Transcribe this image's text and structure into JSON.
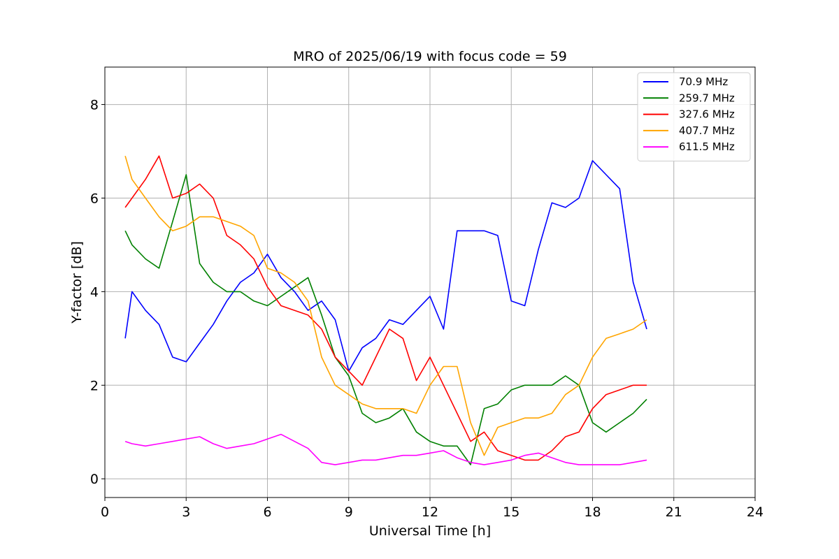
{
  "chart_data": {
    "type": "line",
    "title": "MRO of 2025/06/19 with focus code = 59",
    "xlabel": "Universal Time [h]",
    "ylabel": "Y-factor [dB]",
    "xlim": [
      0,
      24
    ],
    "ylim": [
      -0.4,
      8.8
    ],
    "xticks": [
      0,
      3,
      6,
      9,
      12,
      15,
      18,
      21,
      24
    ],
    "xtick_labels": [
      "0",
      "3",
      "6",
      "9",
      "12",
      "15",
      "18",
      "21",
      "24"
    ],
    "yticks": [
      0,
      2,
      4,
      6,
      8
    ],
    "ytick_labels": [
      "0",
      "2",
      "4",
      "6",
      "8"
    ],
    "grid": true,
    "legend_position": "top-right",
    "series": [
      {
        "name": " 70.9 MHz",
        "color": "#0000ff",
        "x": [
          0.75,
          1.0,
          1.5,
          2.0,
          2.5,
          3.0,
          3.5,
          4.0,
          4.5,
          5.0,
          5.5,
          6.0,
          6.5,
          7.0,
          7.5,
          8.0,
          8.5,
          9.0,
          9.5,
          10.0,
          10.5,
          11.0,
          11.5,
          12.0,
          12.5,
          13.0,
          13.5,
          14.0,
          14.5,
          15.0,
          15.5,
          16.0,
          16.5,
          17.0,
          17.5,
          18.0,
          18.5,
          19.0,
          19.5,
          20.0
        ],
        "y": [
          3.0,
          4.0,
          3.6,
          3.3,
          2.6,
          2.5,
          2.9,
          3.3,
          3.8,
          4.2,
          4.4,
          4.8,
          4.3,
          4.0,
          3.6,
          3.8,
          3.4,
          2.3,
          2.8,
          3.0,
          3.4,
          3.3,
          3.6,
          3.9,
          3.2,
          5.3,
          5.3,
          5.3,
          5.2,
          3.8,
          3.7,
          4.9,
          5.9,
          5.8,
          6.0,
          6.8,
          6.5,
          6.2,
          4.2,
          3.2
        ]
      },
      {
        "name": "259.7 MHz",
        "color": "#008000",
        "x": [
          0.75,
          1.0,
          1.5,
          2.0,
          2.5,
          3.0,
          3.5,
          4.0,
          4.5,
          5.0,
          5.5,
          6.0,
          6.5,
          7.0,
          7.5,
          8.0,
          8.5,
          9.0,
          9.5,
          10.0,
          10.5,
          11.0,
          11.5,
          12.0,
          12.5,
          13.0,
          13.5,
          14.0,
          14.5,
          15.0,
          15.5,
          16.0,
          16.5,
          17.0,
          17.5,
          18.0,
          18.5,
          19.0,
          19.5,
          20.0
        ],
        "y": [
          5.3,
          5.0,
          4.7,
          4.5,
          5.5,
          6.5,
          4.6,
          4.2,
          4.0,
          4.0,
          3.8,
          3.7,
          3.9,
          4.1,
          4.3,
          3.5,
          2.6,
          2.2,
          1.4,
          1.2,
          1.3,
          1.5,
          1.0,
          0.8,
          0.7,
          0.7,
          0.3,
          1.5,
          1.6,
          1.9,
          2.0,
          2.0,
          2.0,
          2.2,
          2.0,
          1.2,
          1.0,
          1.2,
          1.4,
          1.7
        ]
      },
      {
        "name": "327.6 MHz",
        "color": "#ff0000",
        "x": [
          0.75,
          1.0,
          1.5,
          2.0,
          2.5,
          3.0,
          3.5,
          4.0,
          4.5,
          5.0,
          5.5,
          6.0,
          6.5,
          7.0,
          7.5,
          8.0,
          8.5,
          9.0,
          9.5,
          10.0,
          10.5,
          11.0,
          11.5,
          12.0,
          12.5,
          13.0,
          13.5,
          14.0,
          14.5,
          15.0,
          15.5,
          16.0,
          16.5,
          17.0,
          17.5,
          18.0,
          18.5,
          19.0,
          19.5,
          20.0
        ],
        "y": [
          5.8,
          6.0,
          6.4,
          6.9,
          6.0,
          6.1,
          6.3,
          6.0,
          5.2,
          5.0,
          4.7,
          4.1,
          3.7,
          3.6,
          3.5,
          3.2,
          2.6,
          2.3,
          2.0,
          2.6,
          3.2,
          3.0,
          2.1,
          2.6,
          2.0,
          1.4,
          0.8,
          1.0,
          0.6,
          0.5,
          0.4,
          0.4,
          0.6,
          0.9,
          1.0,
          1.5,
          1.8,
          1.9,
          2.0,
          2.0
        ]
      },
      {
        "name": "407.7 MHz",
        "color": "#ffa500",
        "x": [
          0.75,
          1.0,
          1.5,
          2.0,
          2.5,
          3.0,
          3.5,
          4.0,
          4.5,
          5.0,
          5.5,
          6.0,
          6.5,
          7.0,
          7.5,
          8.0,
          8.5,
          9.0,
          9.5,
          10.0,
          10.5,
          11.0,
          11.5,
          12.0,
          12.5,
          13.0,
          13.5,
          14.0,
          14.5,
          15.0,
          15.5,
          16.0,
          16.5,
          17.0,
          17.5,
          18.0,
          18.5,
          19.0,
          19.5,
          20.0
        ],
        "y": [
          6.9,
          6.4,
          6.0,
          5.6,
          5.3,
          5.4,
          5.6,
          5.6,
          5.5,
          5.4,
          5.2,
          4.5,
          4.4,
          4.2,
          3.8,
          2.6,
          2.0,
          1.8,
          1.6,
          1.5,
          1.5,
          1.5,
          1.4,
          2.0,
          2.4,
          2.4,
          1.2,
          0.5,
          1.1,
          1.2,
          1.3,
          1.3,
          1.4,
          1.8,
          2.0,
          2.6,
          3.0,
          3.1,
          3.2,
          3.4
        ]
      },
      {
        "name": "611.5 MHz",
        "color": "#ff00ff",
        "x": [
          0.75,
          1.0,
          1.5,
          2.0,
          2.5,
          3.0,
          3.5,
          4.0,
          4.5,
          5.0,
          5.5,
          6.0,
          6.5,
          7.0,
          7.5,
          8.0,
          8.5,
          9.0,
          9.5,
          10.0,
          10.5,
          11.0,
          11.5,
          12.0,
          12.5,
          13.0,
          13.5,
          14.0,
          14.5,
          15.0,
          15.5,
          16.0,
          16.5,
          17.0,
          17.5,
          18.0,
          18.5,
          19.0,
          19.5,
          20.0
        ],
        "y": [
          0.8,
          0.75,
          0.7,
          0.75,
          0.8,
          0.85,
          0.9,
          0.75,
          0.65,
          0.7,
          0.75,
          0.85,
          0.95,
          0.8,
          0.65,
          0.35,
          0.3,
          0.35,
          0.4,
          0.4,
          0.45,
          0.5,
          0.5,
          0.55,
          0.6,
          0.45,
          0.35,
          0.3,
          0.35,
          0.4,
          0.5,
          0.55,
          0.45,
          0.35,
          0.3,
          0.3,
          0.3,
          0.3,
          0.35,
          0.4
        ]
      }
    ]
  }
}
